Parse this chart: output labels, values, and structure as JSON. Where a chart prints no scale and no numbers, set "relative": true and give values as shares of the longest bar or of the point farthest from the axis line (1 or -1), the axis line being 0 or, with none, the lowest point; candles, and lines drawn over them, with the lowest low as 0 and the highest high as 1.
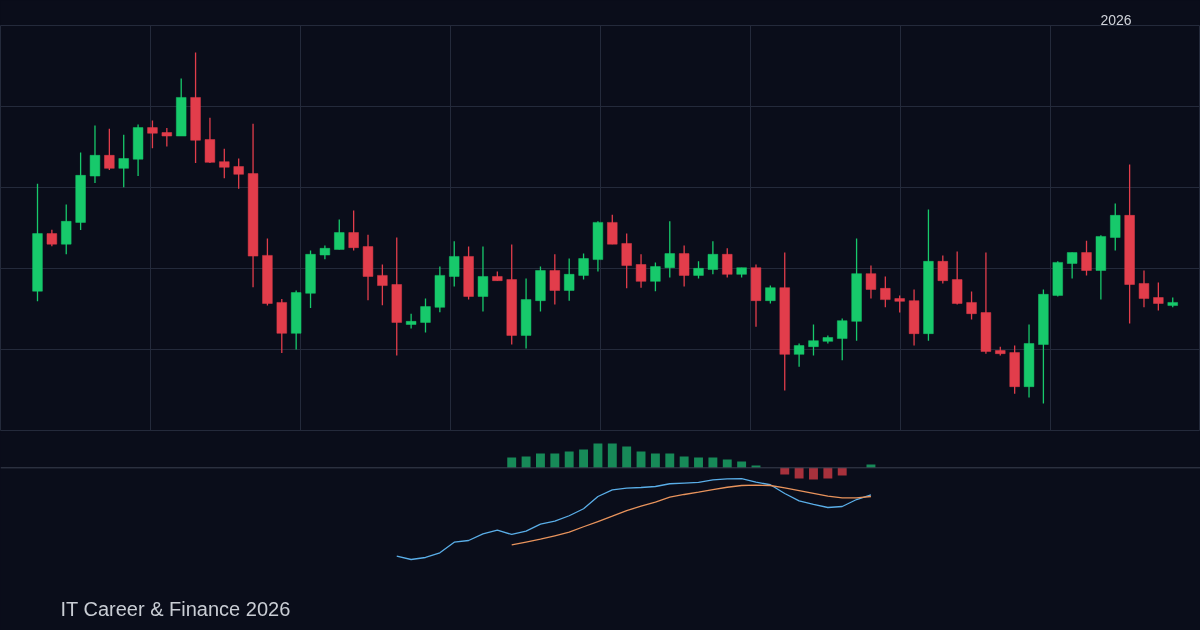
{
  "chart_data": [
    {
      "type": "candlestick",
      "relative": true,
      "grid": true,
      "annotations": [
        "2026"
      ],
      "categories": [
        null,
        null,
        null,
        null,
        null,
        null,
        null,
        null,
        null,
        null,
        null,
        null,
        null,
        null,
        null,
        null,
        null,
        null,
        null,
        null,
        null,
        null,
        null,
        null,
        null,
        null,
        null,
        null,
        null,
        null,
        null,
        null,
        null,
        null,
        null,
        null,
        null,
        null,
        null,
        null,
        null,
        null,
        null,
        null,
        null,
        null,
        null,
        null,
        null,
        null,
        null,
        null,
        null,
        null,
        null,
        null,
        null,
        null,
        null,
        null,
        null,
        null,
        null,
        null,
        null,
        null,
        null,
        null,
        null,
        null,
        null,
        null,
        null,
        null,
        null,
        null,
        null,
        null,
        null,
        null
      ],
      "ohlc": [
        [
          0.32,
          0.626,
          0.291,
          0.484
        ],
        [
          0.484,
          0.495,
          0.448,
          0.454
        ],
        [
          0.454,
          0.567,
          0.425,
          0.519
        ],
        [
          0.516,
          0.715,
          0.494,
          0.65
        ],
        [
          0.648,
          0.792,
          0.628,
          0.707
        ],
        [
          0.707,
          0.783,
          0.665,
          0.67
        ],
        [
          0.67,
          0.766,
          0.616,
          0.698
        ],
        [
          0.696,
          0.795,
          0.648,
          0.786
        ],
        [
          0.786,
          0.806,
          0.727,
          0.77
        ],
        [
          0.772,
          0.785,
          0.732,
          0.762
        ],
        [
          0.762,
          0.926,
          0.762,
          0.872
        ],
        [
          0.872,
          1.0,
          0.685,
          0.75
        ],
        [
          0.752,
          0.814,
          0.685,
          0.687
        ],
        [
          0.689,
          0.726,
          0.642,
          0.673
        ],
        [
          0.675,
          0.698,
          0.612,
          0.653
        ],
        [
          0.655,
          0.797,
          0.331,
          0.42
        ],
        [
          0.422,
          0.47,
          0.279,
          0.285
        ],
        [
          0.288,
          0.298,
          0.144,
          0.2
        ],
        [
          0.2,
          0.322,
          0.154,
          0.316
        ],
        [
          0.314,
          0.436,
          0.272,
          0.425
        ],
        [
          0.423,
          0.45,
          0.411,
          0.442
        ],
        [
          0.439,
          0.524,
          0.439,
          0.487
        ],
        [
          0.487,
          0.55,
          0.436,
          0.444
        ],
        [
          0.447,
          0.481,
          0.294,
          0.362
        ],
        [
          0.365,
          0.396,
          0.28,
          0.336
        ],
        [
          0.339,
          0.473,
          0.137,
          0.231
        ],
        [
          0.225,
          0.256,
          0.214,
          0.234
        ],
        [
          0.231,
          0.299,
          0.202,
          0.276
        ],
        [
          0.274,
          0.39,
          0.26,
          0.365
        ],
        [
          0.362,
          0.462,
          0.333,
          0.419
        ],
        [
          0.419,
          0.447,
          0.296,
          0.305
        ],
        [
          0.305,
          0.447,
          0.262,
          0.362
        ],
        [
          0.362,
          0.376,
          0.35,
          0.35
        ],
        [
          0.353,
          0.453,
          0.168,
          0.194
        ],
        [
          0.194,
          0.356,
          0.157,
          0.296
        ],
        [
          0.293,
          0.39,
          0.262,
          0.379
        ],
        [
          0.379,
          0.425,
          0.282,
          0.322
        ],
        [
          0.322,
          0.413,
          0.293,
          0.368
        ],
        [
          0.365,
          0.427,
          0.353,
          0.413
        ],
        [
          0.41,
          0.519,
          0.376,
          0.516
        ],
        [
          0.516,
          0.538,
          0.454,
          0.454
        ],
        [
          0.456,
          0.484,
          0.328,
          0.393
        ],
        [
          0.396,
          0.425,
          0.33,
          0.348
        ],
        [
          0.348,
          0.402,
          0.32,
          0.39
        ],
        [
          0.387,
          0.519,
          0.359,
          0.427
        ],
        [
          0.427,
          0.45,
          0.333,
          0.365
        ],
        [
          0.365,
          0.405,
          0.356,
          0.385
        ],
        [
          0.382,
          0.462,
          0.368,
          0.425
        ],
        [
          0.425,
          0.442,
          0.359,
          0.368
        ],
        [
          0.368,
          0.387,
          0.359,
          0.387
        ],
        [
          0.387,
          0.396,
          0.219,
          0.293
        ],
        [
          0.293,
          0.336,
          0.285,
          0.33
        ],
        [
          0.33,
          0.43,
          0.037,
          0.14
        ],
        [
          0.14,
          0.171,
          0.105,
          0.165
        ],
        [
          0.162,
          0.225,
          0.137,
          0.179
        ],
        [
          0.177,
          0.194,
          0.171,
          0.188
        ],
        [
          0.185,
          0.242,
          0.123,
          0.236
        ],
        [
          0.234,
          0.47,
          0.179,
          0.37
        ],
        [
          0.37,
          0.393,
          0.299,
          0.325
        ],
        [
          0.328,
          0.362,
          0.274,
          0.296
        ],
        [
          0.299,
          0.308,
          0.259,
          0.291
        ],
        [
          0.293,
          0.325,
          0.165,
          0.199
        ],
        [
          0.199,
          0.553,
          0.179,
          0.405
        ],
        [
          0.405,
          0.422,
          0.342,
          0.35
        ],
        [
          0.353,
          0.433,
          0.282,
          0.285
        ],
        [
          0.288,
          0.319,
          0.239,
          0.256
        ],
        [
          0.259,
          0.43,
          0.142,
          0.148
        ],
        [
          0.151,
          0.162,
          0.137,
          0.142
        ],
        [
          0.145,
          0.165,
          0.028,
          0.048
        ],
        [
          0.048,
          0.225,
          0.017,
          0.171
        ],
        [
          0.168,
          0.325,
          0,
          0.311
        ],
        [
          0.308,
          0.405,
          0.305,
          0.402
        ],
        [
          0.399,
          0.43,
          0.356,
          0.43
        ],
        [
          0.43,
          0.464,
          0.365,
          0.379
        ],
        [
          0.379,
          0.479,
          0.296,
          0.476
        ],
        [
          0.473,
          0.57,
          0.436,
          0.536
        ],
        [
          0.536,
          0.681,
          0.228,
          0.339
        ],
        [
          0.342,
          0.379,
          0.274,
          0.299
        ],
        [
          0.302,
          0.345,
          0.265,
          0.285
        ],
        [
          0.279,
          0.302,
          0.274,
          0.288
        ]
      ],
      "colors": [
        "#17c96b",
        "#e23d4b",
        "#17c96b",
        "#17c96b",
        "#17c96b",
        "#e23d4b",
        "#17c96b",
        "#17c96b",
        "#e23d4b",
        "#e23d4b",
        "#17c96b",
        "#e23d4b",
        "#e23d4b",
        "#e23d4b",
        "#e23d4b",
        "#e23d4b",
        "#e23d4b",
        "#e23d4b",
        "#17c96b",
        "#17c96b",
        "#17c96b",
        "#17c96b",
        "#e23d4b",
        "#e23d4b",
        "#e23d4b",
        "#e23d4b",
        "#17c96b",
        "#17c96b",
        "#17c96b",
        "#17c96b",
        "#e23d4b",
        "#17c96b",
        "#e23d4b",
        "#e23d4b",
        "#17c96b",
        "#17c96b",
        "#e23d4b",
        "#17c96b",
        "#17c96b",
        "#17c96b",
        "#e23d4b",
        "#e23d4b",
        "#e23d4b",
        "#17c96b",
        "#17c96b",
        "#e23d4b",
        "#17c96b",
        "#17c96b",
        "#e23d4b",
        "#17c96b",
        "#e23d4b",
        "#17c96b",
        "#e23d4b",
        "#17c96b",
        "#17c96b",
        "#17c96b",
        "#17c96b",
        "#17c96b",
        "#e23d4b",
        "#e23d4b",
        "#e23d4b",
        "#e23d4b",
        "#17c96b",
        "#e23d4b",
        "#e23d4b",
        "#e23d4b",
        "#e23d4b",
        "#e23d4b",
        "#e23d4b",
        "#17c96b",
        "#17c96b",
        "#17c96b",
        "#17c96b",
        "#e23d4b",
        "#17c96b",
        "#17c96b",
        "#e23d4b",
        "#e23d4b",
        "#e23d4b",
        "#17c96b"
      ]
    },
    {
      "type": "bar",
      "relative": true,
      "annotations": [
        "IT Career & Finance 2026"
      ],
      "ref_lines": [
        {
          "axis": "y",
          "value": 0,
          "color": "#3a4050"
        }
      ],
      "categories": [
        null,
        null,
        null,
        null,
        null,
        null,
        null,
        null,
        null,
        null,
        null,
        null,
        null,
        null,
        null,
        null,
        null,
        null,
        null,
        null,
        null,
        null,
        null,
        null,
        null,
        null,
        null,
        null,
        null,
        null,
        null,
        null,
        null,
        null,
        null,
        null,
        null,
        null,
        null,
        null,
        null,
        null,
        null,
        null,
        null,
        null,
        null,
        null,
        null,
        null,
        null,
        null,
        null,
        null,
        null,
        null,
        null,
        null,
        null,
        null,
        null,
        null,
        null,
        null,
        null,
        null,
        null,
        null,
        null,
        null,
        null,
        null,
        null,
        null,
        null,
        null,
        null,
        null,
        null,
        null
      ],
      "series": [
        {
          "type": "bar",
          "values": [
            null,
            null,
            null,
            null,
            null,
            null,
            null,
            null,
            null,
            null,
            null,
            null,
            null,
            null,
            null,
            null,
            null,
            null,
            null,
            null,
            null,
            null,
            null,
            null,
            null,
            null,
            null,
            null,
            null,
            null,
            null,
            null,
            null,
            0.112,
            0.123,
            0.156,
            0.156,
            0.178,
            0.2,
            0.265,
            0.265,
            0.232,
            0.178,
            0.156,
            0.156,
            0.123,
            0.112,
            0.112,
            0.091,
            0.069,
            0.025,
            null,
            -0.073,
            -0.117,
            -0.128,
            -0.117,
            -0.084,
            null,
            0.036,
            null,
            null,
            null,
            null,
            null,
            null,
            null,
            null,
            null,
            null,
            null,
            null,
            null,
            null,
            null,
            null,
            null,
            null,
            null,
            null,
            null
          ],
          "colors": [
            null,
            null,
            null,
            null,
            null,
            null,
            null,
            null,
            null,
            null,
            null,
            null,
            null,
            null,
            null,
            null,
            null,
            null,
            null,
            null,
            null,
            null,
            null,
            null,
            null,
            null,
            null,
            null,
            null,
            null,
            null,
            null,
            null,
            "#178a58",
            "#178a58",
            "#178a58",
            "#178a58",
            "#178a58",
            "#178a58",
            "#178a58",
            "#178a58",
            "#178a58",
            "#178a58",
            "#178a58",
            "#178a58",
            "#178a58",
            "#178a58",
            "#178a58",
            "#178a58",
            "#178a58",
            "#178a58",
            null,
            "#a8313c",
            "#a8313c",
            "#a8313c",
            "#a8313c",
            "#a8313c",
            null,
            "#178a58",
            null,
            null,
            null,
            null,
            null,
            null,
            null,
            null,
            null,
            null,
            null,
            null,
            null,
            null,
            null,
            null,
            null,
            null,
            null,
            null,
            null
          ]
        },
        {
          "type": "line",
          "color": "#5aaee8",
          "values": [
            null,
            null,
            null,
            null,
            null,
            null,
            null,
            null,
            null,
            null,
            null,
            null,
            null,
            null,
            null,
            null,
            null,
            null,
            null,
            null,
            null,
            null,
            null,
            null,
            null,
            -0.964,
            -1,
            -0.978,
            -0.927,
            -0.811,
            -0.793,
            -0.72,
            -0.68,
            -0.727,
            -0.691,
            -0.615,
            -0.582,
            -0.523,
            -0.447,
            -0.313,
            -0.24,
            -0.222,
            -0.215,
            -0.204,
            -0.174,
            -0.168,
            -0.16,
            -0.131,
            -0.12,
            -0.117,
            -0.157,
            -0.185,
            -0.28,
            -0.36,
            -0.4,
            -0.433,
            -0.422,
            -0.346,
            -0.294,
            null,
            null,
            null,
            null,
            null,
            null,
            null,
            null,
            null,
            null,
            null,
            null,
            null,
            null,
            null,
            null,
            null,
            null,
            null,
            null,
            null
          ]
        },
        {
          "type": "line",
          "color": "#e8935c",
          "values": [
            null,
            null,
            null,
            null,
            null,
            null,
            null,
            null,
            null,
            null,
            null,
            null,
            null,
            null,
            null,
            null,
            null,
            null,
            null,
            null,
            null,
            null,
            null,
            null,
            null,
            null,
            null,
            null,
            null,
            null,
            null,
            null,
            null,
            -0.84,
            -0.811,
            -0.779,
            -0.742,
            -0.702,
            -0.643,
            -0.586,
            -0.528,
            -0.466,
            -0.419,
            -0.375,
            -0.321,
            -0.291,
            -0.266,
            -0.237,
            -0.212,
            -0.193,
            -0.19,
            -0.193,
            -0.218,
            -0.248,
            -0.28,
            -0.31,
            -0.327,
            -0.327,
            -0.313,
            null,
            null,
            null,
            null,
            null,
            null,
            null,
            null,
            null,
            null,
            null,
            null,
            null,
            null,
            null,
            null,
            null,
            null,
            null,
            null,
            null
          ]
        }
      ]
    }
  ]
}
